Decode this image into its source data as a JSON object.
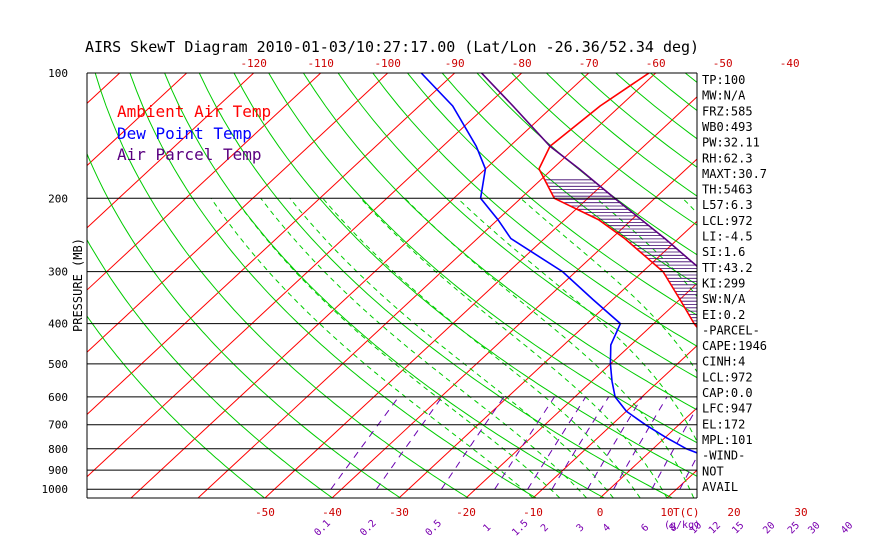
{
  "chart_data": {
    "type": "line",
    "title": "AIRS SkewT Diagram 2010-01-03/10:27:17.00 (Lat/Lon -26.36/52.34 deg)",
    "ylabel": "PRESSURE (MB)",
    "y_scale": "log",
    "ylim": [
      1050,
      100
    ],
    "y_ticks": [
      "100",
      "200",
      "300",
      "400",
      "500",
      "600",
      "700",
      "800",
      "900",
      "1000"
    ],
    "x_ticks_top": [
      "-120",
      "-110",
      "-100",
      "-90",
      "-80",
      "-70",
      "-60",
      "-50",
      "-40"
    ],
    "x_ticks_bottom": [
      "-50",
      "-40",
      "-30",
      "-20",
      "-10",
      "0",
      "10",
      "20",
      "30"
    ],
    "x_unit_label": "T(C)",
    "mixing_ratio_ticks": [
      "0.1",
      "0.2",
      "0.5",
      "1",
      "1.5",
      "2",
      "3",
      "4",
      "6",
      "8",
      "10",
      "12",
      "15",
      "20",
      "25",
      "30",
      "40"
    ],
    "mixing_ratio_unit": "g/kg",
    "legend": [
      "Ambient Air Temp",
      "Dew Point Temp",
      "Air Parcel Temp"
    ],
    "legend_placement": "top-left",
    "series": [
      {
        "name": "Ambient Air Temp",
        "color": "#ff0000",
        "points": [
          [
            1000,
            29
          ],
          [
            975,
            26
          ],
          [
            950,
            24
          ],
          [
            925,
            23
          ],
          [
            900,
            22
          ],
          [
            850,
            20
          ],
          [
            800,
            17
          ],
          [
            750,
            14
          ],
          [
            700,
            11
          ],
          [
            650,
            7
          ],
          [
            600,
            4
          ],
          [
            550,
            1
          ],
          [
            500,
            -4
          ],
          [
            450,
            -8
          ],
          [
            400,
            -14
          ],
          [
            350,
            -20
          ],
          [
            300,
            -27
          ],
          [
            250,
            -38
          ],
          [
            225,
            -45
          ],
          [
            200,
            -55
          ],
          [
            170,
            -62
          ],
          [
            150,
            -64
          ],
          [
            120,
            -63
          ],
          [
            100,
            -61
          ]
        ]
      },
      {
        "name": "Dew Point Temp",
        "color": "#0000ff",
        "points": [
          [
            1000,
            23
          ],
          [
            975,
            22
          ],
          [
            950,
            20
          ],
          [
            925,
            18
          ],
          [
            900,
            15
          ],
          [
            850,
            11
          ],
          [
            800,
            5
          ],
          [
            750,
            0
          ],
          [
            700,
            -5
          ],
          [
            650,
            -10
          ],
          [
            600,
            -14
          ],
          [
            550,
            -17
          ],
          [
            500,
            -20
          ],
          [
            450,
            -23
          ],
          [
            400,
            -25
          ],
          [
            350,
            -33
          ],
          [
            300,
            -42
          ],
          [
            250,
            -55
          ],
          [
            225,
            -60
          ],
          [
            200,
            -66
          ],
          [
            170,
            -70
          ],
          [
            150,
            -75
          ],
          [
            120,
            -85
          ],
          [
            100,
            -95
          ]
        ]
      },
      {
        "name": "Air Parcel Temp",
        "color": "#5a0080",
        "points": [
          [
            1000,
            29
          ],
          [
            975,
            27
          ],
          [
            950,
            26
          ],
          [
            900,
            24
          ],
          [
            850,
            22
          ],
          [
            800,
            20
          ],
          [
            750,
            18
          ],
          [
            700,
            15
          ],
          [
            650,
            13
          ],
          [
            600,
            10
          ],
          [
            550,
            7
          ],
          [
            500,
            4
          ],
          [
            450,
            0
          ],
          [
            400,
            -6
          ],
          [
            350,
            -13
          ],
          [
            300,
            -21
          ],
          [
            250,
            -32
          ],
          [
            200,
            -46
          ],
          [
            170,
            -56
          ],
          [
            150,
            -64
          ],
          [
            120,
            -76
          ],
          [
            100,
            -86
          ]
        ]
      }
    ],
    "cape_shading": "hatched region between Ambient Air Temp and Air Parcel Temp",
    "background_lines": [
      "isotherms (red)",
      "dry adiabats (green)",
      "moist adiabats (green dashed)",
      "mixing ratio lines (purple dashed)"
    ]
  },
  "indices": [
    "TP:100",
    "MW:N/A",
    "FRZ:585",
    "WB0:493",
    "PW:32.11",
    "RH:62.3",
    "MAXT:30.7",
    "TH:5463",
    "L57:6.3",
    "LCL:972",
    "LI:-4.5",
    "SI:1.6",
    "TT:43.2",
    "KI:299",
    "SW:N/A",
    "EI:0.2",
    "-PARCEL-",
    "CAPE:1946",
    "CINH:4",
    "LCL:972",
    "CAP:0.0",
    "LFC:947",
    "EL:172",
    "MPL:101",
    "-WIND-",
    "NOT",
    "AVAIL"
  ],
  "colors": {
    "isotherm": "#ff0000",
    "dry_adiabat": "#00cc00",
    "moist_adiabat": "#00cc00",
    "mixing_ratio": "#6a00b0",
    "ambient": "#ff0000",
    "dewpoint": "#0000ff",
    "parcel": "#5a0080",
    "hatch": "#3a006a",
    "axis_text": "#000000",
    "temp_labels": "#cc0000",
    "mixing_labels": "#7a00b0"
  }
}
